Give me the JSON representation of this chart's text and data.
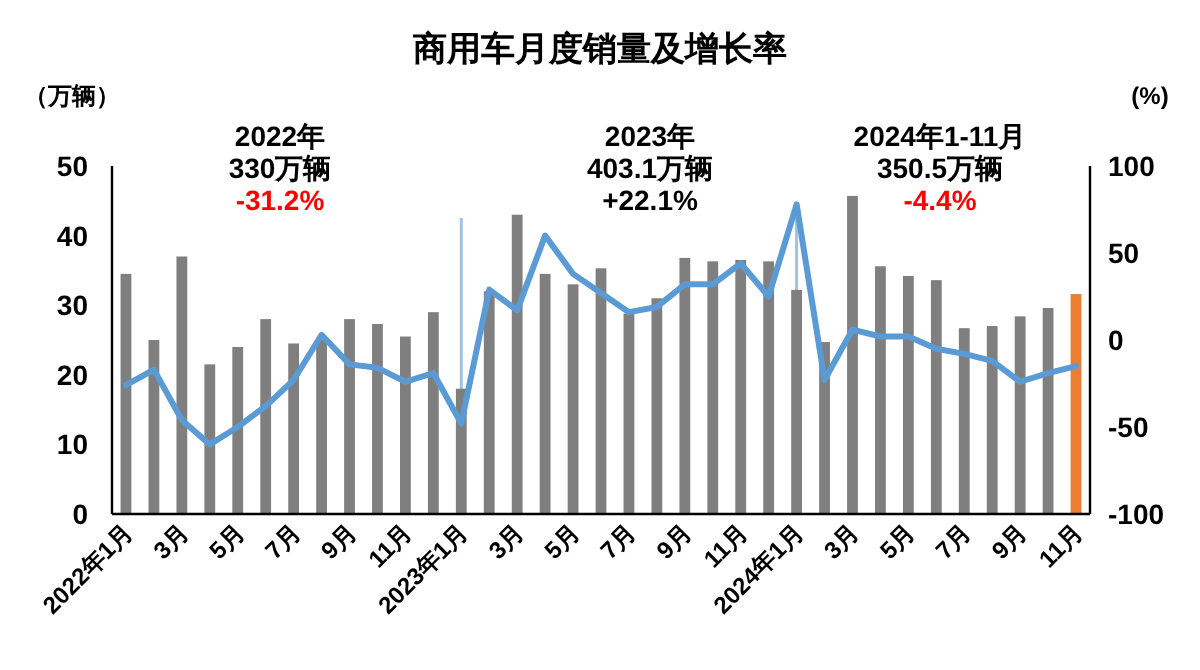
{
  "chart_data": {
    "type": "bar",
    "title": "商用车月度销量及增长率",
    "ylabel": "（万辆）",
    "y2label": "(%)",
    "categories": [
      "2022年1月",
      null,
      "3月",
      null,
      "5月",
      null,
      "7月",
      null,
      "9月",
      null,
      "11月",
      null,
      "2023年1月",
      null,
      "3月",
      null,
      "5月",
      null,
      "7月",
      null,
      "9月",
      null,
      "11月",
      null,
      "2024年1月",
      null,
      "3月",
      null,
      "5月",
      null,
      "7月",
      null,
      "9月",
      null,
      "11月"
    ],
    "series": [
      {
        "colors": [
          "#7f7f7f",
          "#7f7f7f",
          "#7f7f7f",
          "#7f7f7f",
          "#7f7f7f",
          "#7f7f7f",
          "#7f7f7f",
          "#7f7f7f",
          "#7f7f7f",
          "#7f7f7f",
          "#7f7f7f",
          "#7f7f7f",
          "#7f7f7f",
          "#7f7f7f",
          "#7f7f7f",
          "#7f7f7f",
          "#7f7f7f",
          "#7f7f7f",
          "#7f7f7f",
          "#7f7f7f",
          "#7f7f7f",
          "#7f7f7f",
          "#7f7f7f",
          "#7f7f7f",
          "#7f7f7f",
          "#7f7f7f",
          "#7f7f7f",
          "#7f7f7f",
          "#7f7f7f",
          "#7f7f7f",
          "#7f7f7f",
          "#7f7f7f",
          "#7f7f7f",
          "#7f7f7f",
          "#ed7d31"
        ],
        "values": [
          34.5,
          25,
          37,
          21.5,
          24,
          28,
          24.5,
          25,
          28,
          27.3,
          25.5,
          29,
          18,
          32,
          43,
          34.5,
          33,
          35.3,
          28.8,
          31,
          36.8,
          36.3,
          36.5,
          36.3,
          32.2,
          24.7,
          45.7,
          35.6,
          34.2,
          33.6,
          26.7,
          27,
          28.4,
          29.6,
          31.6
        ]
      },
      {
        "type": "line",
        "axis": "y2",
        "color": "#5b9bd5",
        "values": [
          -26,
          -17,
          -46,
          -60,
          -50,
          -38,
          -23,
          3,
          -14,
          -16,
          -24,
          -19,
          -48,
          29,
          17,
          60,
          38,
          27,
          16,
          19,
          32,
          32,
          44,
          25,
          78,
          -23,
          6,
          2,
          2,
          -5,
          -8,
          -12,
          -24,
          -19,
          -15
        ]
      }
    ],
    "ylim": [
      0,
      50
    ],
    "yticks": [
      0,
      10,
      20,
      30,
      40,
      50
    ],
    "y2lim": [
      -100,
      100
    ],
    "y2ticks": [
      -100,
      -50,
      0,
      50,
      100
    ],
    "ref_lines": [
      {
        "axis": "x",
        "value": "2023年1月",
        "color": "#9dc3e6"
      },
      {
        "axis": "x",
        "value": "2024年1月",
        "color": "#9dc3e6"
      }
    ],
    "annotations": [
      "2022年",
      "330万辆",
      "-31.2%",
      "2023年",
      "403.1万辆",
      "+22.1%",
      "2024年1-11月",
      "350.5万辆",
      "-4.4%"
    ]
  }
}
